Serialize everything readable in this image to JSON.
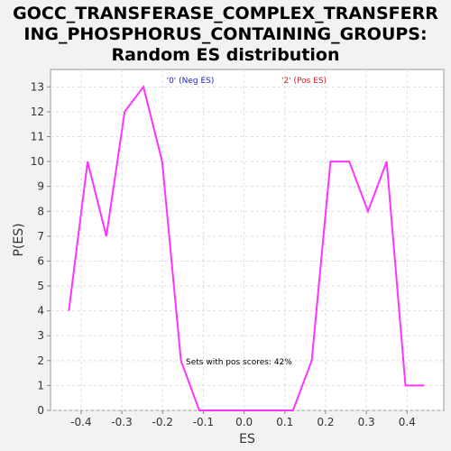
{
  "chart_data": {
    "type": "line",
    "title_lines": [
      "GOCC_TRANSFERASE_COMPLEX_TRANSFERR",
      "ING_PHOSPHORUS_CONTAINING_GROUPS:",
      "Random ES distribution"
    ],
    "xlabel": "ES",
    "ylabel": "P(ES)",
    "xlim": [
      -0.475,
      0.49
    ],
    "ylim": [
      0,
      13.7
    ],
    "x_ticks": [
      -0.4,
      -0.3,
      -0.2,
      -0.1,
      0.0,
      0.1,
      0.2,
      0.3,
      0.4
    ],
    "x_tick_labels": [
      "-0.4",
      "-0.3",
      "-0.2",
      "-0.1",
      "0.0",
      "0.1",
      "0.2",
      "0.3",
      "0.4"
    ],
    "y_ticks": [
      0,
      1,
      2,
      3,
      4,
      5,
      6,
      7,
      8,
      9,
      10,
      11,
      12,
      13
    ],
    "y_tick_labels": [
      "0",
      "1",
      "2",
      "3",
      "4",
      "5",
      "6",
      "7",
      "8",
      "9",
      "10",
      "11",
      "12",
      "13"
    ],
    "grid": true,
    "series": [
      {
        "color": "#ff33ff",
        "x": [
          -0.43,
          -0.384,
          -0.338,
          -0.293,
          -0.247,
          -0.201,
          -0.155,
          -0.11,
          -0.064,
          -0.018,
          0.028,
          0.074,
          0.12,
          0.166,
          0.212,
          0.258,
          0.304,
          0.35,
          0.396,
          0.442
        ],
        "y": [
          4,
          10,
          7,
          12,
          13,
          10,
          2,
          0,
          0,
          0,
          0,
          0,
          0,
          2,
          10,
          10,
          8,
          10,
          1,
          1
        ]
      }
    ],
    "legend": [
      {
        "label": "'0' (Neg ES)",
        "color": "#2222cc"
      },
      {
        "label": "'2' (Pos ES)",
        "color": "#cc2222"
      }
    ],
    "legend_placement": "top",
    "annotation": "Sets with pos scores: 42%"
  }
}
